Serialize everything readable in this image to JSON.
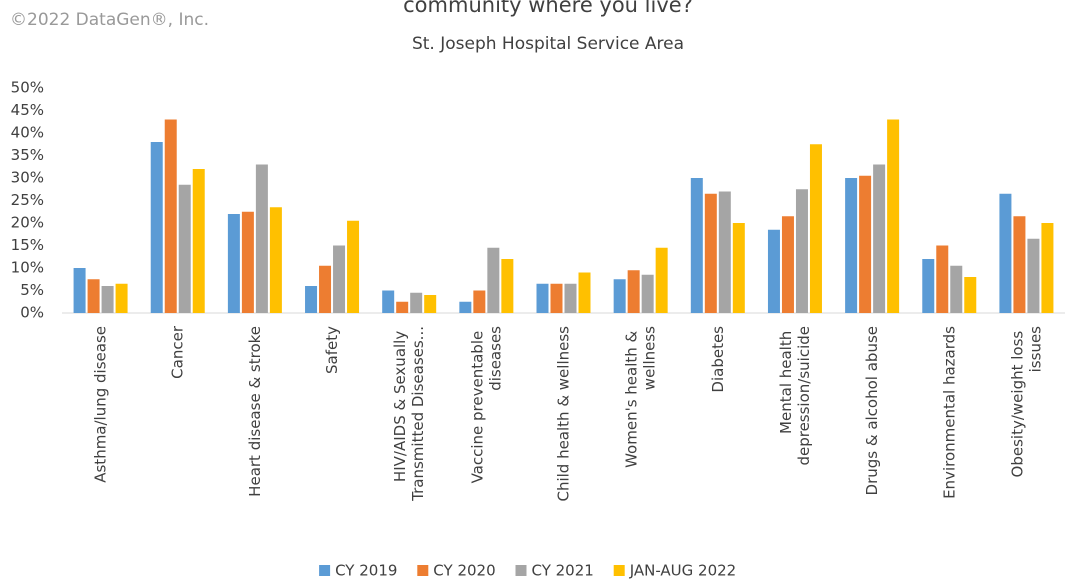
{
  "watermark": "©2022 DataGen®, Inc.",
  "chart_data": {
    "type": "bar",
    "title": "community where you live?",
    "subtitle": "St. Joseph Hospital Service Area",
    "categories": [
      "Asthma/lung disease",
      "Cancer",
      "Heart disease & stroke",
      "Safety",
      "HIV/AIDS & Sexually Transmitted Diseases...",
      "Vaccine preventable diseases",
      "Child health & wellness",
      "Women's health & wellness",
      "Diabetes",
      "Mental health depression/suicide",
      "Drugs & alcohol abuse",
      "Environmental hazards",
      "Obesity/weight loss issues"
    ],
    "series": [
      {
        "name": "CY 2019",
        "color": "#5b9bd5",
        "values": [
          10,
          38,
          22,
          6,
          5,
          2.5,
          6.5,
          7.5,
          30,
          18.5,
          30,
          12,
          26.5
        ]
      },
      {
        "name": "CY 2020",
        "color": "#ed7d31",
        "values": [
          7.5,
          43,
          22.5,
          10.5,
          2.5,
          5,
          6.5,
          9.5,
          26.5,
          21.5,
          30.5,
          15,
          21.5
        ]
      },
      {
        "name": "CY 2021",
        "color": "#a5a5a5",
        "values": [
          6,
          28.5,
          33,
          15,
          4.5,
          14.5,
          6.5,
          8.5,
          27,
          27.5,
          33,
          10.5,
          16.5
        ]
      },
      {
        "name": "JAN-AUG 2022",
        "color": "#ffc000",
        "values": [
          6.5,
          32,
          23.5,
          20.5,
          4,
          12,
          9,
          14.5,
          20,
          37.5,
          43,
          8,
          20
        ]
      }
    ],
    "ylim": [
      0,
      50
    ],
    "yticks": [
      {
        "value": 0,
        "label": "0%"
      },
      {
        "value": 5,
        "label": "5%"
      },
      {
        "value": 10,
        "label": "10%"
      },
      {
        "value": 15,
        "label": "15%"
      },
      {
        "value": 20,
        "label": "20%"
      },
      {
        "value": 25,
        "label": "25%"
      },
      {
        "value": 30,
        "label": "30%"
      },
      {
        "value": 35,
        "label": "35%"
      },
      {
        "value": 40,
        "label": "40%"
      },
      {
        "value": 45,
        "label": "45%"
      },
      {
        "value": 50,
        "label": "50%"
      }
    ],
    "grid": false,
    "legend": "bottom"
  }
}
